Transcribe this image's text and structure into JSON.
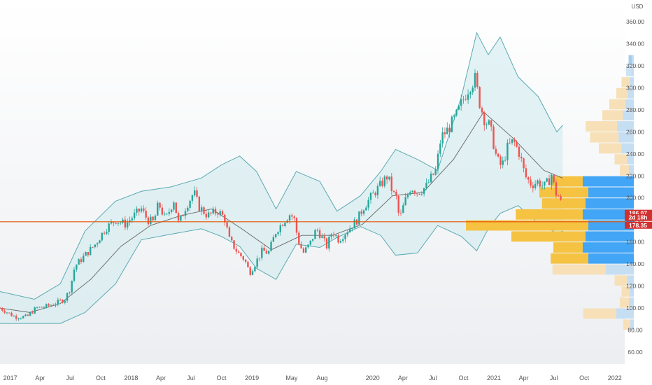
{
  "chart_data": {
    "type": "candlestick",
    "currency_label": "USD",
    "x_ticks": [
      "2017",
      "Apr",
      "Jul",
      "Oct",
      "2018",
      "Apr",
      "Jul",
      "Oct",
      "2019",
      "May",
      "Aug",
      "2020",
      "Apr",
      "Jul",
      "Oct",
      "2021",
      "Apr",
      "Jul",
      "Oct",
      "2022"
    ],
    "x_tick_dates": [
      "2017-01",
      "2017-04",
      "2017-07",
      "2017-10",
      "2018-01",
      "2018-04",
      "2018-07",
      "2018-10",
      "2019-01",
      "2019-05",
      "2019-08",
      "2020-01",
      "2020-04",
      "2020-07",
      "2020-10",
      "2021-01",
      "2021-04",
      "2021-07",
      "2021-10",
      "2022-01"
    ],
    "y_ticks": [
      "60.00",
      "80.00",
      "100.00",
      "120.00",
      "140.00",
      "160.00",
      "180.00",
      "200.00",
      "220.00",
      "240.00",
      "260.00",
      "280.00",
      "300.00",
      "320.00",
      "340.00",
      "360.00"
    ],
    "y_range": [
      50,
      368
    ],
    "price_tags": [
      {
        "text": "186.07",
        "color": "#d32f2f"
      },
      {
        "text": "2d 18h",
        "color": "#d32f2f"
      },
      {
        "text": "178.35",
        "color": "#d32f2f"
      }
    ],
    "horizontal_line": {
      "value": 178.35,
      "color": "#e65100"
    },
    "close_path": [
      [
        "2016-12-01",
        100
      ],
      [
        "2017-01-15",
        92
      ],
      [
        "2017-02-20",
        92
      ],
      [
        "2017-03-20",
        100
      ],
      [
        "2017-04-15",
        101
      ],
      [
        "2017-05-15",
        104
      ],
      [
        "2017-06-15",
        108
      ],
      [
        "2017-07-01",
        118
      ],
      [
        "2017-07-15",
        138
      ],
      [
        "2017-08-15",
        148
      ],
      [
        "2017-09-15",
        158
      ],
      [
        "2017-10-15",
        172
      ],
      [
        "2017-11-15",
        180
      ],
      [
        "2017-12-15",
        176
      ],
      [
        "2018-01-10",
        184
      ],
      [
        "2018-02-01",
        190
      ],
      [
        "2018-02-20",
        180
      ],
      [
        "2018-03-10",
        178
      ],
      [
        "2018-03-25",
        195
      ],
      [
        "2018-04-15",
        180
      ],
      [
        "2018-05-10",
        198
      ],
      [
        "2018-05-25",
        176
      ],
      [
        "2018-06-15",
        192
      ],
      [
        "2018-07-10",
        205
      ],
      [
        "2018-07-25",
        192
      ],
      [
        "2018-08-20",
        184
      ],
      [
        "2018-09-20",
        188
      ],
      [
        "2018-10-10",
        182
      ],
      [
        "2018-10-25",
        162
      ],
      [
        "2018-11-20",
        150
      ],
      [
        "2018-12-10",
        144
      ],
      [
        "2018-12-25",
        132
      ],
      [
        "2019-01-10",
        140
      ],
      [
        "2019-02-01",
        152
      ],
      [
        "2019-02-20",
        150
      ],
      [
        "2019-03-15",
        170
      ],
      [
        "2019-04-10",
        180
      ],
      [
        "2019-04-25",
        185
      ],
      [
        "2019-05-08",
        182
      ],
      [
        "2019-05-20",
        162
      ],
      [
        "2019-06-05",
        150
      ],
      [
        "2019-06-25",
        158
      ],
      [
        "2019-07-15",
        172
      ],
      [
        "2019-07-30",
        165
      ],
      [
        "2019-08-15",
        156
      ],
      [
        "2019-09-01",
        170
      ],
      [
        "2019-09-20",
        162
      ],
      [
        "2019-10-15",
        170
      ],
      [
        "2019-11-15",
        180
      ],
      [
        "2019-12-05",
        192
      ],
      [
        "2019-12-25",
        200
      ],
      [
        "2020-01-20",
        210
      ],
      [
        "2020-02-15",
        220
      ],
      [
        "2020-03-01",
        205
      ],
      [
        "2020-03-12",
        200
      ],
      [
        "2020-03-22",
        180
      ],
      [
        "2020-04-05",
        195
      ],
      [
        "2020-04-25",
        210
      ],
      [
        "2020-05-15",
        205
      ],
      [
        "2020-06-10",
        210
      ],
      [
        "2020-06-25",
        218
      ],
      [
        "2020-07-10",
        225
      ],
      [
        "2020-07-25",
        255
      ],
      [
        "2020-08-15",
        262
      ],
      [
        "2020-09-10",
        275
      ],
      [
        "2020-10-01",
        290
      ],
      [
        "2020-10-20",
        302
      ],
      [
        "2020-11-05",
        308
      ],
      [
        "2020-11-20",
        285
      ],
      [
        "2020-12-05",
        270
      ],
      [
        "2020-12-20",
        265
      ],
      [
        "2021-01-10",
        235
      ],
      [
        "2021-01-25",
        228
      ],
      [
        "2021-02-10",
        245
      ],
      [
        "2021-03-01",
        252
      ],
      [
        "2021-03-20",
        240
      ],
      [
        "2021-04-05",
        220
      ],
      [
        "2021-04-25",
        212
      ],
      [
        "2021-05-15",
        215
      ],
      [
        "2021-06-01",
        210
      ],
      [
        "2021-06-15",
        215
      ],
      [
        "2021-06-25",
        222
      ],
      [
        "2021-07-05",
        205
      ],
      [
        "2021-07-20",
        200
      ],
      [
        "2021-07-28",
        184
      ]
    ],
    "sma_path": [
      [
        "2016-12-01",
        100
      ],
      [
        "2017-03-01",
        96
      ],
      [
        "2017-06-01",
        104
      ],
      [
        "2017-09-01",
        126
      ],
      [
        "2017-12-01",
        156
      ],
      [
        "2018-03-01",
        175
      ],
      [
        "2018-06-01",
        184
      ],
      [
        "2018-09-01",
        190
      ],
      [
        "2018-12-01",
        172
      ],
      [
        "2019-03-01",
        153
      ],
      [
        "2019-06-01",
        166
      ],
      [
        "2019-09-01",
        166
      ],
      [
        "2019-12-01",
        176
      ],
      [
        "2020-03-01",
        202
      ],
      [
        "2020-06-01",
        205
      ],
      [
        "2020-09-01",
        235
      ],
      [
        "2020-12-01",
        278
      ],
      [
        "2021-03-01",
        254
      ],
      [
        "2021-06-01",
        225
      ],
      [
        "2021-07-28",
        218
      ]
    ],
    "bollinger_upper": [
      [
        "2016-12-01",
        115
      ],
      [
        "2017-03-15",
        108
      ],
      [
        "2017-06-01",
        122
      ],
      [
        "2017-08-15",
        170
      ],
      [
        "2017-11-15",
        197
      ],
      [
        "2018-02-01",
        206
      ],
      [
        "2018-05-01",
        210
      ],
      [
        "2018-08-01",
        218
      ],
      [
        "2018-10-01",
        230
      ],
      [
        "2018-11-25",
        238
      ],
      [
        "2019-01-15",
        224
      ],
      [
        "2019-03-15",
        190
      ],
      [
        "2019-05-15",
        224
      ],
      [
        "2019-07-25",
        215
      ],
      [
        "2019-09-15",
        188
      ],
      [
        "2019-11-25",
        202
      ],
      [
        "2020-01-25",
        224
      ],
      [
        "2020-03-10",
        244
      ],
      [
        "2020-05-15",
        235
      ],
      [
        "2020-07-15",
        225
      ],
      [
        "2020-09-25",
        292
      ],
      [
        "2020-11-10",
        350
      ],
      [
        "2020-12-15",
        330
      ],
      [
        "2021-01-20",
        346
      ],
      [
        "2021-03-15",
        310
      ],
      [
        "2021-05-15",
        292
      ],
      [
        "2021-07-10",
        260
      ],
      [
        "2021-07-28",
        266
      ]
    ],
    "bollinger_lower": [
      [
        "2016-12-01",
        86
      ],
      [
        "2017-03-15",
        86
      ],
      [
        "2017-06-01",
        86
      ],
      [
        "2017-08-15",
        96
      ],
      [
        "2017-11-15",
        122
      ],
      [
        "2018-02-01",
        162
      ],
      [
        "2018-05-01",
        167
      ],
      [
        "2018-08-01",
        172
      ],
      [
        "2018-10-01",
        165
      ],
      [
        "2018-11-25",
        156
      ],
      [
        "2019-01-15",
        136
      ],
      [
        "2019-03-15",
        126
      ],
      [
        "2019-05-15",
        158
      ],
      [
        "2019-07-25",
        155
      ],
      [
        "2019-09-15",
        164
      ],
      [
        "2019-11-25",
        174
      ],
      [
        "2020-01-25",
        166
      ],
      [
        "2020-03-10",
        148
      ],
      [
        "2020-05-15",
        150
      ],
      [
        "2020-07-15",
        175
      ],
      [
        "2020-09-25",
        165
      ],
      [
        "2020-11-10",
        152
      ],
      [
        "2020-12-15",
        172
      ],
      [
        "2021-01-20",
        186
      ],
      [
        "2021-03-15",
        193
      ],
      [
        "2021-05-15",
        177
      ],
      [
        "2021-07-10",
        168
      ],
      [
        "2021-07-28",
        170
      ]
    ],
    "volume_profile": [
      {
        "price": 325,
        "volume": 0.06,
        "color": "#a5cdf0"
      },
      {
        "price": 315,
        "volume": 0.09,
        "color": "#cde3f5"
      },
      {
        "price": 305,
        "volume": 0.14,
        "color": "#f7e0b8"
      },
      {
        "price": 295,
        "volume": 0.2,
        "color": "#f7e0b8"
      },
      {
        "price": 285,
        "volume": 0.28,
        "color": "#f7e0b8"
      },
      {
        "price": 275,
        "volume": 0.36,
        "color": "#f7e0b8"
      },
      {
        "price": 265,
        "volume": 0.55,
        "color": "#f7e0b8"
      },
      {
        "price": 255,
        "volume": 0.5,
        "color": "#f7e0b8"
      },
      {
        "price": 245,
        "volume": 0.4,
        "color": "#f7e0b8"
      },
      {
        "price": 235,
        "volume": 0.22,
        "color": "#f7e0b8"
      },
      {
        "price": 225,
        "volume": 0.16,
        "color": "#f7e0b8"
      },
      {
        "price": 215,
        "volume": 0.95,
        "color": "#f5c242"
      },
      {
        "price": 205,
        "volume": 1.08,
        "color": "#f5c242"
      },
      {
        "price": 195,
        "volume": 1.05,
        "color": "#f5c242"
      },
      {
        "price": 185,
        "volume": 1.35,
        "color": "#f5c242"
      },
      {
        "price": 175,
        "volume": 1.92,
        "color": "#f5c242"
      },
      {
        "price": 165,
        "volume": 1.4,
        "color": "#f5c242"
      },
      {
        "price": 155,
        "volume": 0.92,
        "color": "#f5c242"
      },
      {
        "price": 145,
        "volume": 0.95,
        "color": "#f5c242"
      },
      {
        "price": 135,
        "volume": 0.93,
        "color": "#f7e0b8"
      },
      {
        "price": 125,
        "volume": 0.22,
        "color": "#f7e0b8"
      },
      {
        "price": 115,
        "volume": 0.14,
        "color": "#f7e0b8"
      },
      {
        "price": 105,
        "volume": 0.16,
        "color": "#f7e0b8"
      },
      {
        "price": 95,
        "volume": 0.58,
        "color": "#f7e0b8"
      },
      {
        "price": 85,
        "volume": 0.12,
        "color": "#f7e0b8"
      }
    ],
    "colors": {
      "up": "#26a69a",
      "down": "#ef5350",
      "band_line": "#5aaab2",
      "band_fill": "#d2ebee",
      "sma": "#666666",
      "vp_blue": "#42a5f5"
    }
  }
}
